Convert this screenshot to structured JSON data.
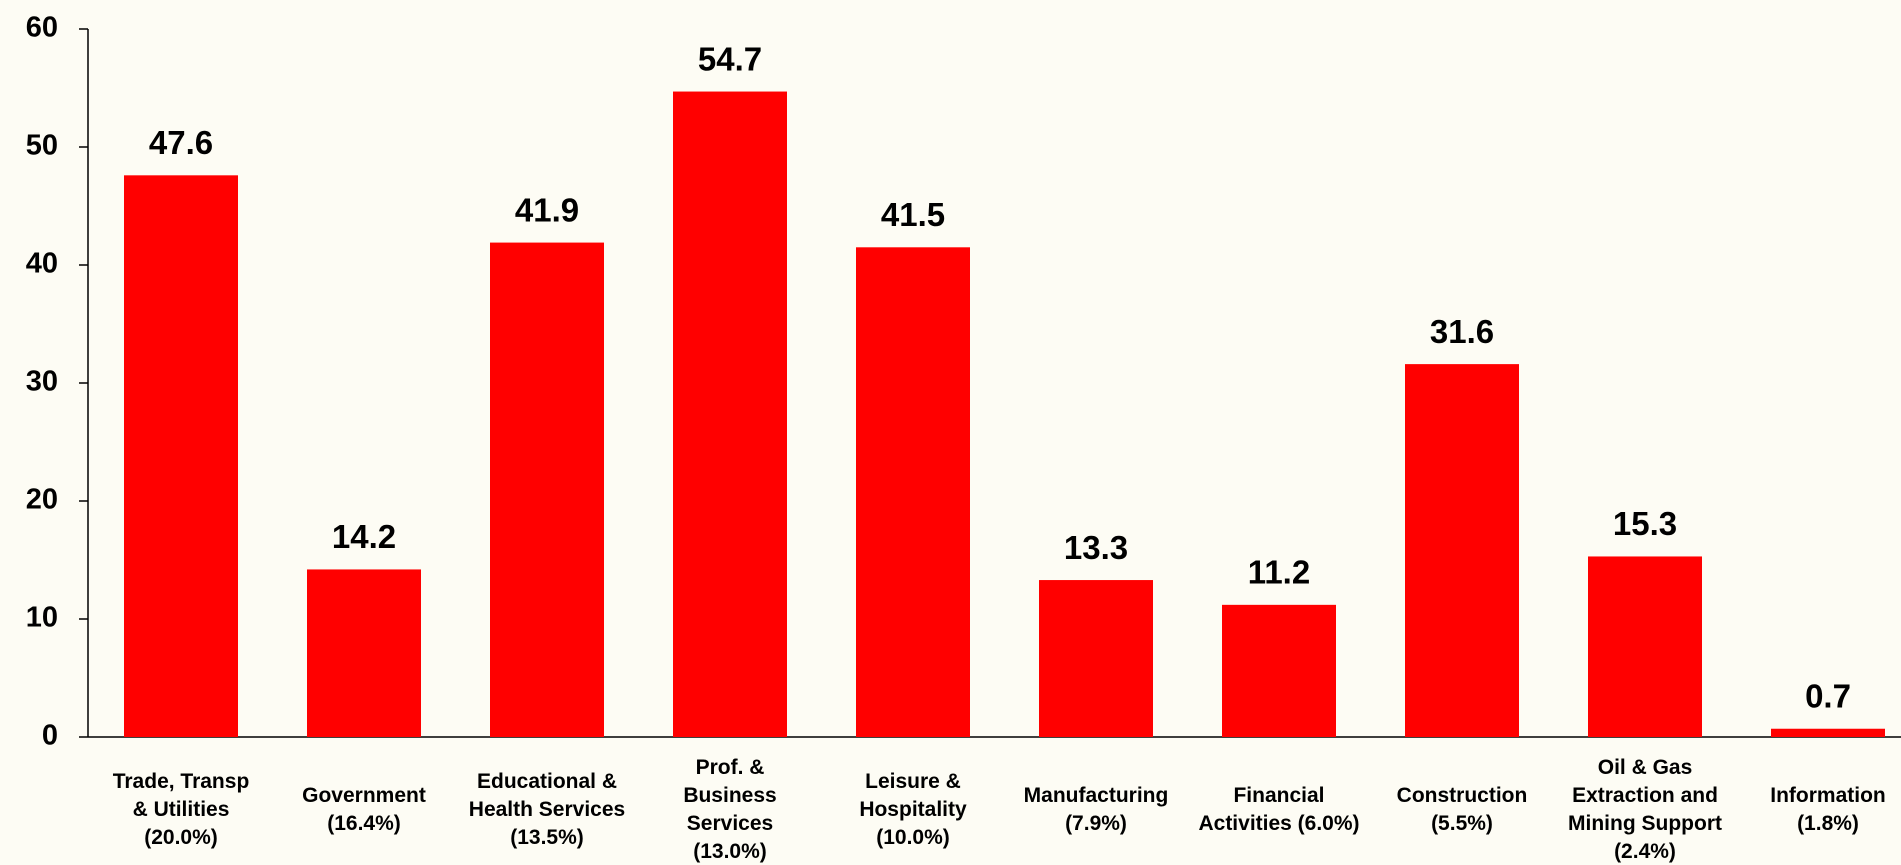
{
  "chart_data": {
    "type": "bar",
    "categories": [
      [
        "Trade, Transp",
        "& Utilities",
        "(20.0%)"
      ],
      [
        "Government",
        "(16.4%)"
      ],
      [
        "Educational &",
        "Health Services",
        "(13.5%)"
      ],
      [
        "Prof. &",
        "Business",
        "Services",
        "(13.0%)"
      ],
      [
        "Leisure &",
        "Hospitality",
        "(10.0%)"
      ],
      [
        "Manufacturing",
        "(7.9%)"
      ],
      [
        "Financial",
        "Activities (6.0%)"
      ],
      [
        "Construction",
        "(5.5%)"
      ],
      [
        "Oil & Gas",
        "Extraction and",
        "Mining Support",
        "(2.4%)"
      ],
      [
        "Information",
        "(1.8%)"
      ]
    ],
    "values": [
      47.6,
      14.2,
      41.9,
      54.7,
      41.5,
      13.3,
      11.2,
      31.6,
      15.3,
      0.7
    ],
    "color": "#ff0000",
    "ylim": [
      0,
      60
    ],
    "yticks": [
      0,
      10,
      20,
      30,
      40,
      50,
      60
    ]
  }
}
